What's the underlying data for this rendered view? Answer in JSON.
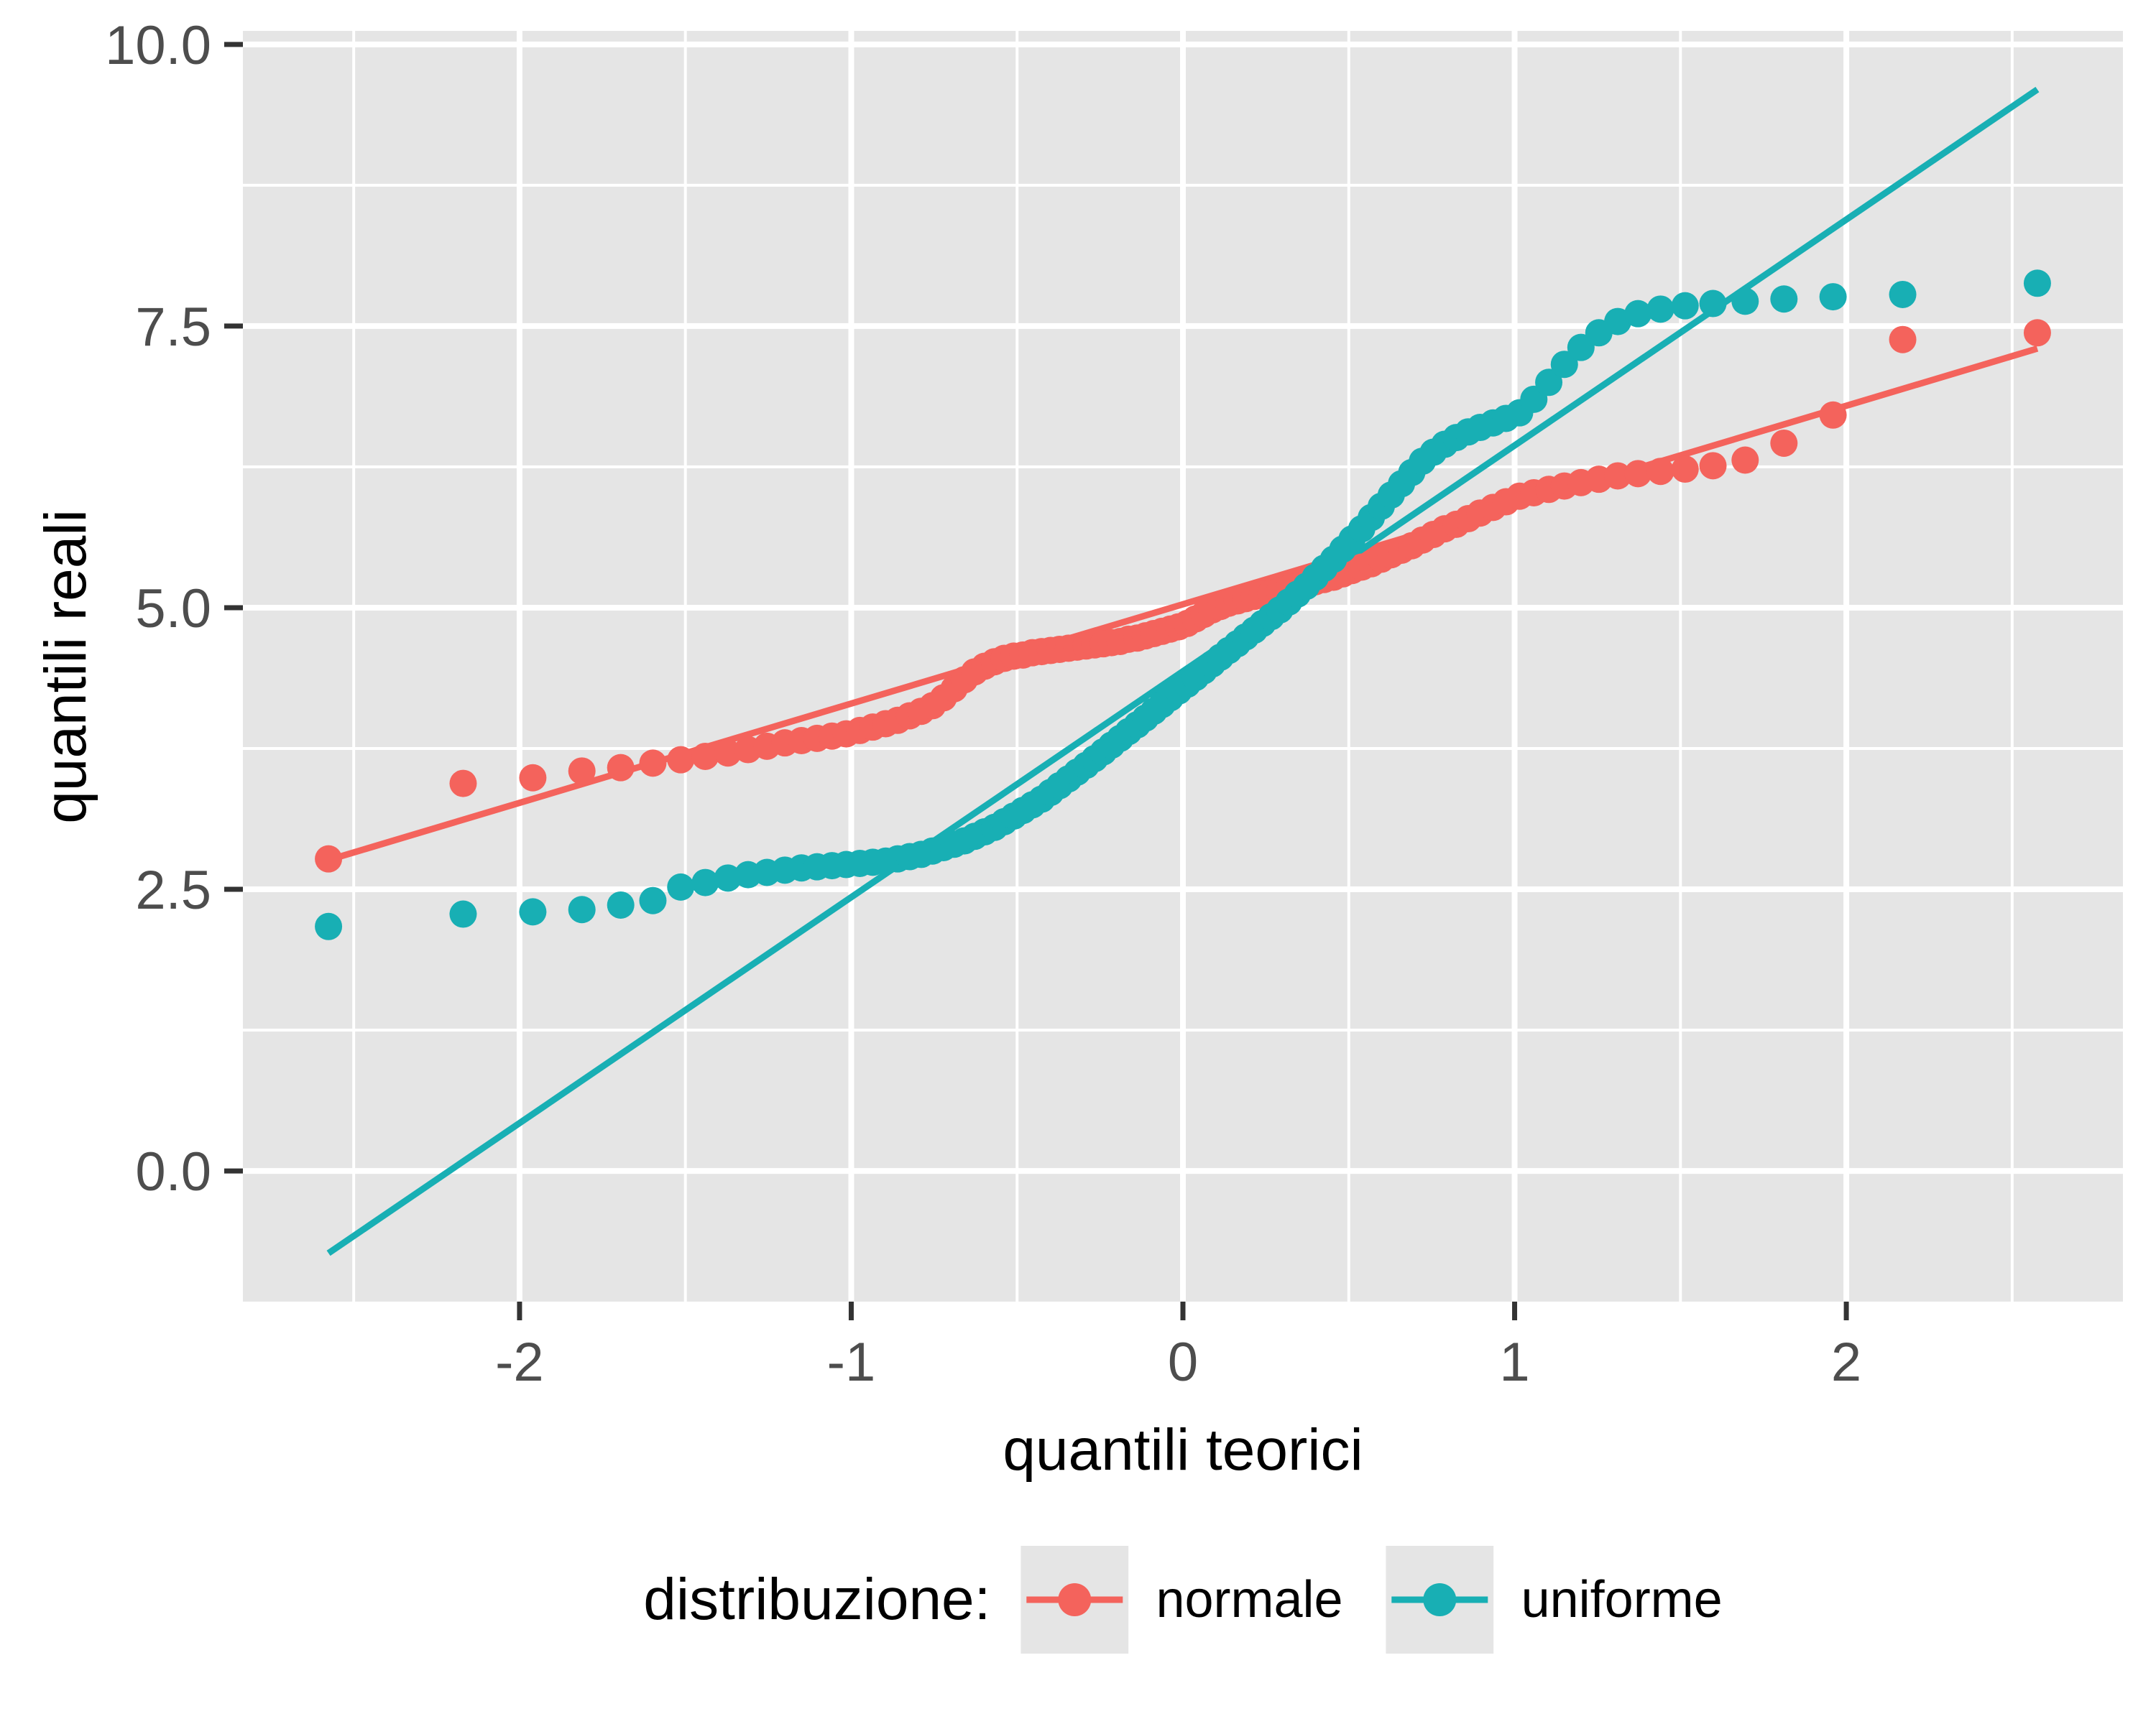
{
  "chart_data": {
    "type": "scatter",
    "title": "",
    "xlabel": "quantili teorici",
    "ylabel": "quantili reali",
    "legend_title": "distribuzione:",
    "legend_position": "bottom",
    "grid": true,
    "panel_bg": "#E5E5E5",
    "grid_color": "#FFFFFF",
    "tick_color": "#333333",
    "tick_label_color": "#4D4D4D",
    "legend_key_bg": "#E5E5E5",
    "xlim": [
      -2.834,
      2.834
    ],
    "ylim": [
      -1.16,
      10.12
    ],
    "x_tick_values": [
      -2,
      -1,
      0,
      1,
      2
    ],
    "x_tick_labels": [
      "-2",
      "-1",
      "0",
      "1",
      "2"
    ],
    "y_tick_values": [
      0,
      2.5,
      5,
      7.5,
      10
    ],
    "y_tick_labels": [
      "0.0",
      "2.5",
      "5.0",
      "7.5",
      "10.0"
    ],
    "x": [
      -2.576,
      -2.17,
      -1.96,
      -1.812,
      -1.695,
      -1.598,
      -1.514,
      -1.44,
      -1.372,
      -1.311,
      -1.254,
      -1.2,
      -1.15,
      -1.103,
      -1.058,
      -1.015,
      -0.974,
      -0.935,
      -0.896,
      -0.86,
      -0.824,
      -0.789,
      -0.755,
      -0.722,
      -0.69,
      -0.659,
      -0.628,
      -0.598,
      -0.568,
      -0.539,
      -0.51,
      -0.482,
      -0.454,
      -0.426,
      -0.399,
      -0.372,
      -0.345,
      -0.319,
      -0.292,
      -0.266,
      -0.24,
      -0.215,
      -0.189,
      -0.164,
      -0.138,
      -0.113,
      -0.088,
      -0.063,
      -0.038,
      -0.013,
      0.013,
      0.038,
      0.063,
      0.088,
      0.113,
      0.138,
      0.164,
      0.189,
      0.215,
      0.24,
      0.266,
      0.292,
      0.319,
      0.345,
      0.372,
      0.399,
      0.426,
      0.454,
      0.482,
      0.51,
      0.539,
      0.568,
      0.598,
      0.628,
      0.659,
      0.69,
      0.722,
      0.755,
      0.789,
      0.824,
      0.86,
      0.896,
      0.935,
      0.974,
      1.015,
      1.058,
      1.103,
      1.15,
      1.2,
      1.254,
      1.311,
      1.372,
      1.44,
      1.514,
      1.598,
      1.695,
      1.812,
      1.96,
      2.17,
      2.576
    ],
    "series": [
      {
        "name": "normale",
        "color": "#F4635C",
        "qq_line": {
          "x1": -2.576,
          "y1": 2.76,
          "x2": 2.576,
          "y2": 7.3
        },
        "y": [
          2.77,
          3.44,
          3.49,
          3.55,
          3.58,
          3.62,
          3.65,
          3.68,
          3.71,
          3.74,
          3.77,
          3.8,
          3.82,
          3.84,
          3.86,
          3.88,
          3.91,
          3.94,
          3.97,
          4.0,
          4.04,
          4.08,
          4.13,
          4.2,
          4.28,
          4.36,
          4.43,
          4.48,
          4.52,
          4.55,
          4.57,
          4.58,
          4.6,
          4.61,
          4.62,
          4.63,
          4.64,
          4.65,
          4.66,
          4.67,
          4.68,
          4.69,
          4.7,
          4.72,
          4.73,
          4.75,
          4.77,
          4.79,
          4.81,
          4.83,
          4.86,
          4.9,
          4.94,
          4.98,
          5.01,
          5.04,
          5.06,
          5.08,
          5.1,
          5.12,
          5.13,
          5.15,
          5.17,
          5.19,
          5.21,
          5.23,
          5.25,
          5.27,
          5.3,
          5.33,
          5.36,
          5.39,
          5.43,
          5.47,
          5.51,
          5.55,
          5.6,
          5.65,
          5.7,
          5.74,
          5.79,
          5.84,
          5.89,
          5.94,
          5.99,
          6.02,
          6.05,
          6.08,
          6.11,
          6.14,
          6.17,
          6.19,
          6.21,
          6.23,
          6.26,
          6.31,
          6.46,
          6.71,
          7.38,
          7.44
        ]
      },
      {
        "name": "uniforme",
        "color": "#18AFB4",
        "qq_line": {
          "x1": -2.576,
          "y1": -0.73,
          "x2": 2.576,
          "y2": 9.6
        },
        "y": [
          2.17,
          2.28,
          2.3,
          2.32,
          2.36,
          2.4,
          2.52,
          2.56,
          2.6,
          2.63,
          2.65,
          2.67,
          2.69,
          2.7,
          2.71,
          2.72,
          2.73,
          2.74,
          2.75,
          2.77,
          2.79,
          2.81,
          2.84,
          2.87,
          2.9,
          2.93,
          2.97,
          3.01,
          3.05,
          3.1,
          3.15,
          3.2,
          3.25,
          3.3,
          3.36,
          3.42,
          3.48,
          3.54,
          3.6,
          3.66,
          3.72,
          3.78,
          3.84,
          3.9,
          3.96,
          4.02,
          4.08,
          4.14,
          4.2,
          4.26,
          4.32,
          4.38,
          4.44,
          4.5,
          4.56,
          4.62,
          4.68,
          4.74,
          4.8,
          4.86,
          4.92,
          4.98,
          5.05,
          5.12,
          5.19,
          5.27,
          5.35,
          5.43,
          5.52,
          5.61,
          5.7,
          5.8,
          5.9,
          6.0,
          6.1,
          6.2,
          6.3,
          6.38,
          6.45,
          6.51,
          6.56,
          6.6,
          6.64,
          6.68,
          6.73,
          6.85,
          7.0,
          7.16,
          7.31,
          7.44,
          7.54,
          7.61,
          7.65,
          7.68,
          7.7,
          7.72,
          7.74,
          7.76,
          7.78,
          7.88
        ]
      }
    ]
  }
}
